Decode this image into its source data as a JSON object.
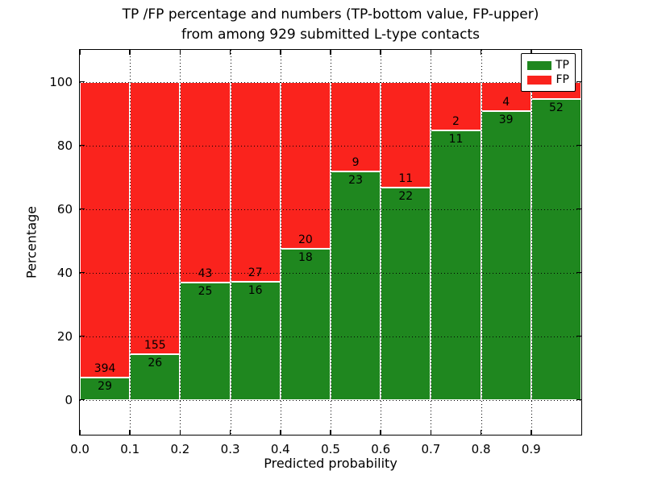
{
  "title": {
    "line1": "TP /FP percentage and numbers (TP-bottom value, FP-upper)",
    "line2": "from among 929 submitted L-type contacts"
  },
  "legend": {
    "entries": [
      {
        "label": "TP",
        "color": "#1f871f"
      },
      {
        "label": "FP",
        "color": "#fa231d"
      }
    ],
    "position": "upper right"
  },
  "chart_data": {
    "type": "bar",
    "subtype": "stacked-100-percent",
    "title": "TP /FP percentage and numbers (TP-bottom value, FP-upper) from among 929 submitted L-type contacts",
    "xlabel": "Predicted probability",
    "ylabel": "Percentage",
    "total_submitted_contacts": 929,
    "bin_edges": [
      0.0,
      0.1,
      0.2,
      0.3,
      0.4,
      0.5,
      0.6,
      0.7,
      0.8,
      0.9,
      1.0
    ],
    "x_ticks": [
      0.0,
      0.1,
      0.2,
      0.3,
      0.4,
      0.5,
      0.6,
      0.7,
      0.8,
      0.9
    ],
    "x_tick_labels": [
      "0.0",
      "0.1",
      "0.2",
      "0.3",
      "0.4",
      "0.5",
      "0.6",
      "0.7",
      "0.8",
      "0.9"
    ],
    "y_ticks": [
      0,
      20,
      40,
      60,
      80,
      100
    ],
    "y_tick_labels": [
      "0",
      "20",
      "40",
      "60",
      "80",
      "100"
    ],
    "xlim": [
      0.0,
      1.0
    ],
    "ylim": [
      -11,
      110
    ],
    "grid": true,
    "grid_style": "dotted",
    "series": [
      {
        "name": "TP",
        "color": "#1f871f",
        "counts": [
          29,
          26,
          25,
          16,
          18,
          23,
          22,
          11,
          39,
          52
        ]
      },
      {
        "name": "FP",
        "color": "#fa231d",
        "counts": [
          394,
          155,
          43,
          27,
          20,
          9,
          11,
          2,
          4,
          3
        ]
      }
    ],
    "tp_value_labels": [
      "29",
      "26",
      "25",
      "16",
      "18",
      "23",
      "22",
      "11",
      "39",
      "52"
    ],
    "fp_value_labels": [
      "394",
      "155",
      "43",
      "27",
      "20",
      "9",
      "11",
      "2",
      "4",
      ""
    ]
  }
}
